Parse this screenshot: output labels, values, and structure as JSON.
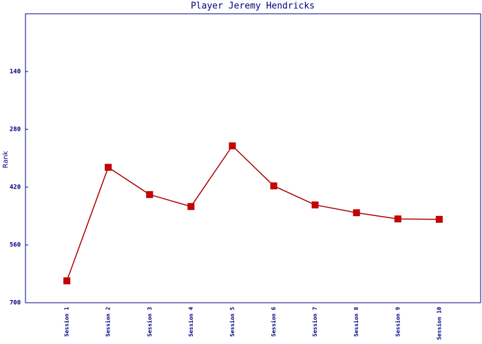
{
  "chart_data": {
    "type": "line",
    "title": "Player Jeremy Hendricks",
    "y_label": "Rank",
    "categories": [
      "Session 1",
      "Session 2",
      "Session 3",
      "Session 4",
      "Session 5",
      "Session 6",
      "Session 7",
      "Session 8",
      "Session 9",
      "Session 10"
    ],
    "series": [
      {
        "name": "Rank",
        "color": "#aa0000",
        "marker_color": "#cc0000",
        "values": [
          647,
          372,
          438,
          467,
          320,
          417,
          463,
          482,
          497,
          498
        ]
      }
    ],
    "ylim": [
      700,
      0
    ],
    "yticks": [
      140,
      280,
      420,
      560,
      700
    ],
    "grid": false
  }
}
